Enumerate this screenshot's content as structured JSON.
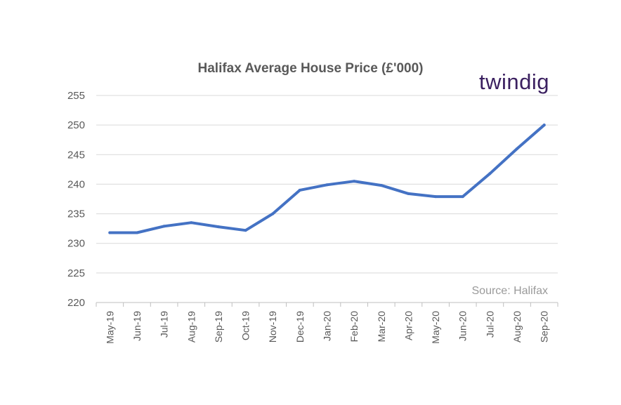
{
  "brand": {
    "logo_text": "twindig",
    "accent_color": "#3b2060"
  },
  "chart_data": {
    "type": "line",
    "title": "Halifax Average House Price (£'000)",
    "xlabel": "",
    "ylabel": "",
    "categories": [
      "May-19",
      "Jun-19",
      "Jul-19",
      "Aug-19",
      "Sep-19",
      "Oct-19",
      "Nov-19",
      "Dec-19",
      "Jan-20",
      "Feb-20",
      "Mar-20",
      "Apr-20",
      "May-20",
      "Jun-20",
      "Jul-20",
      "Aug-20",
      "Sep-20"
    ],
    "series": [
      {
        "values": [
          231.8,
          231.8,
          232.9,
          233.5,
          232.8,
          232.2,
          235.0,
          239.0,
          239.9,
          240.5,
          239.8,
          238.4,
          237.9,
          237.9,
          241.8,
          246.0,
          250.0
        ],
        "color": "#4472c4"
      }
    ],
    "ylim": [
      220,
      255
    ],
    "yticks": [
      220,
      225,
      230,
      235,
      240,
      245,
      250,
      255
    ],
    "grid": true,
    "legend": "none",
    "annotation": "Source: Halifax"
  }
}
